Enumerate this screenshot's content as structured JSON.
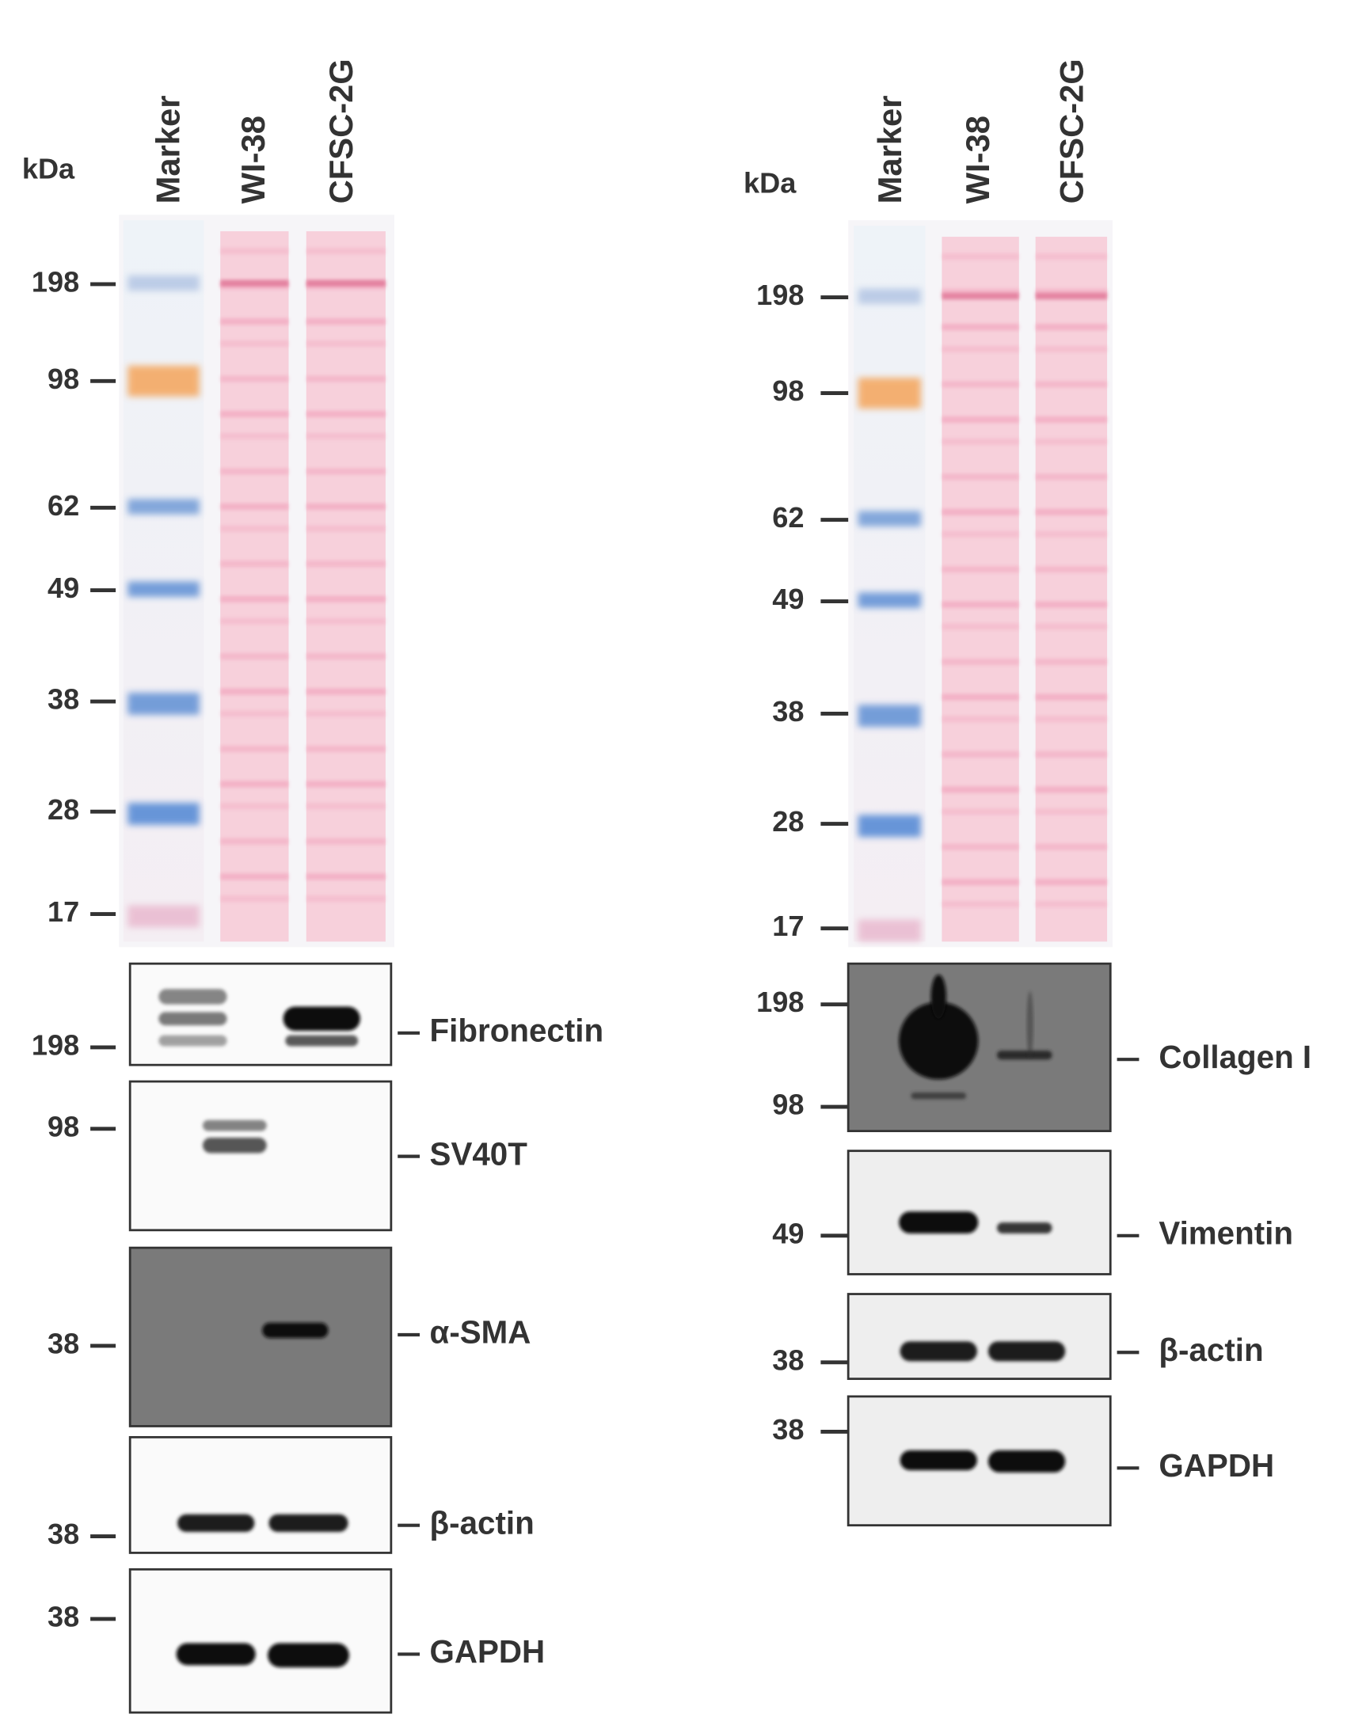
{
  "panels": [
    {
      "kda": "kDa",
      "lanes": [
        "Marker",
        "WI-38",
        "CFSC-2G"
      ],
      "ponceau_markers": [
        "198",
        "98",
        "62",
        "49",
        "38",
        "28",
        "17"
      ],
      "blots": [
        {
          "name": "Fibronectin",
          "markers": [
            "198"
          ]
        },
        {
          "name": "SV40T",
          "markers": [
            "98"
          ]
        },
        {
          "name": "α-SMA",
          "markers": [
            "38"
          ]
        },
        {
          "name": "β-actin",
          "markers": [
            "38"
          ]
        },
        {
          "name": "GAPDH",
          "markers": [
            "38"
          ]
        }
      ]
    },
    {
      "kda": "kDa",
      "lanes": [
        "Marker",
        "WI-38",
        "CFSC-2G"
      ],
      "ponceau_markers": [
        "198",
        "98",
        "62",
        "49",
        "38",
        "28",
        "17"
      ],
      "blots": [
        {
          "name": "Collagen I",
          "markers": [
            "198",
            "98"
          ]
        },
        {
          "name": "Vimentin",
          "markers": [
            "49"
          ]
        },
        {
          "name": "β-actin",
          "markers": [
            "38"
          ]
        },
        {
          "name": "GAPDH",
          "markers": [
            "38"
          ]
        }
      ]
    }
  ]
}
